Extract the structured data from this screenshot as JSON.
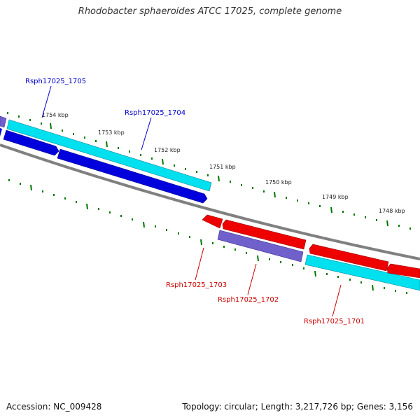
{
  "title": "Rhodobacter sphaeroides ATCC 17025, complete genome",
  "footer": {
    "accession": "Accession: NC_009428",
    "stats": "Topology: circular; Length: 3,217,726 bp; Genes: 3,156"
  },
  "colors": {
    "forward_cds": "#00e0ee",
    "forward_cds_alt": "#0000dd",
    "reverse_cds": "#ee0000",
    "other_gene": "#7060cc",
    "backbone": "#808080",
    "tick": "#007700",
    "label_blue": "#0000cc",
    "label_red": "#cc0000"
  },
  "scale_labels": [
    "1754 kbp",
    "1753 kbp",
    "1752 kbp",
    "1751 kbp",
    "1750 kbp",
    "1749 kbp",
    "1748 kbp"
  ],
  "gene_labels": {
    "rsph17025_1705": "Rsph17025_1705",
    "rsph17025_1704": "Rsph17025_1704",
    "rsph17025_1703": "Rsph17025_1703",
    "rsph17025_1702": "Rsph17025_1702",
    "rsph17025_1701": "Rsph17025_1701"
  }
}
